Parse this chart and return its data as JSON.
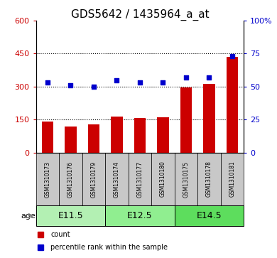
{
  "title": "GDS5642 / 1435964_a_at",
  "samples": [
    "GSM1310173",
    "GSM1310176",
    "GSM1310179",
    "GSM1310174",
    "GSM1310177",
    "GSM1310180",
    "GSM1310175",
    "GSM1310178",
    "GSM1310181"
  ],
  "counts": [
    143,
    120,
    130,
    165,
    158,
    162,
    297,
    313,
    437
  ],
  "percentiles": [
    53,
    51,
    50,
    55,
    53,
    53,
    57,
    57,
    73
  ],
  "ylim_left": [
    0,
    600
  ],
  "ylim_right": [
    0,
    100
  ],
  "yticks_left": [
    0,
    150,
    300,
    450,
    600
  ],
  "yticks_right": [
    0,
    25,
    50,
    75,
    100
  ],
  "groups": [
    {
      "label": "E11.5",
      "indices": [
        0,
        1,
        2
      ]
    },
    {
      "label": "E12.5",
      "indices": [
        3,
        4,
        5
      ]
    },
    {
      "label": "E14.5",
      "indices": [
        6,
        7,
        8
      ]
    }
  ],
  "group_colors": [
    "#b3f0b3",
    "#90ee90",
    "#5ddd5d"
  ],
  "bar_color": "#CC0000",
  "scatter_color": "#0000CC",
  "bar_width": 0.5,
  "bg_color": "#FFFFFF",
  "label_bg_color": "#C8C8C8",
  "age_label": "age",
  "legend_count": "count",
  "legend_percentile": "percentile rank within the sample",
  "title_fontsize": 11,
  "tick_fontsize": 8,
  "group_fontsize": 9,
  "sample_fontsize": 5.5
}
